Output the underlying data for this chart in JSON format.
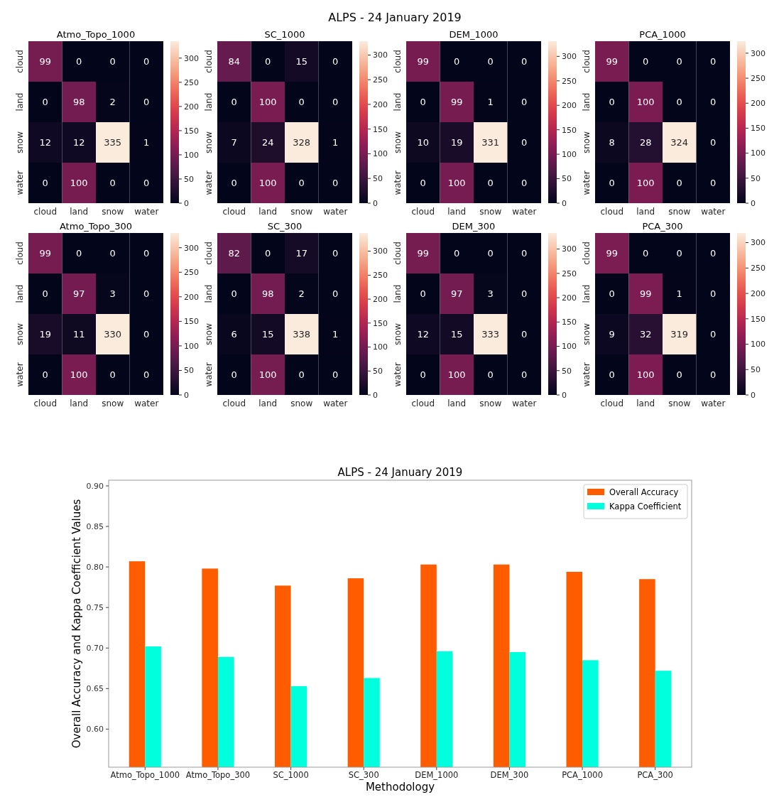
{
  "chart_data": [
    {
      "type": "heatmap",
      "title": "Atmo_Topo_1000",
      "annotations": [
        "ALPS - 24 January 2019"
      ],
      "categories": [
        "cloud",
        "land",
        "snow",
        "water"
      ],
      "y_categories": [
        "cloud",
        "land",
        "snow",
        "water"
      ],
      "cells": [
        [
          99,
          0,
          0,
          0
        ],
        [
          0,
          98,
          2,
          0
        ],
        [
          12,
          12,
          335,
          1
        ],
        [
          0,
          100,
          0,
          0
        ]
      ],
      "clim": [
        0,
        335
      ],
      "cticks": [
        0,
        50,
        100,
        150,
        200,
        250,
        300
      ],
      "data_labels": true
    },
    {
      "type": "heatmap",
      "title": "SC_1000",
      "categories": [
        "cloud",
        "land",
        "snow",
        "water"
      ],
      "y_categories": [
        "cloud",
        "land",
        "snow",
        "water"
      ],
      "cells": [
        [
          84,
          0,
          15,
          0
        ],
        [
          0,
          100,
          0,
          0
        ],
        [
          7,
          24,
          328,
          1
        ],
        [
          0,
          100,
          0,
          0
        ]
      ],
      "clim": [
        0,
        328
      ],
      "cticks": [
        0,
        50,
        100,
        150,
        200,
        250,
        300
      ],
      "data_labels": true
    },
    {
      "type": "heatmap",
      "title": "DEM_1000",
      "categories": [
        "cloud",
        "land",
        "snow",
        "water"
      ],
      "y_categories": [
        "cloud",
        "land",
        "snow",
        "water"
      ],
      "cells": [
        [
          99,
          0,
          0,
          0
        ],
        [
          0,
          99,
          1,
          0
        ],
        [
          10,
          19,
          331,
          0
        ],
        [
          0,
          100,
          0,
          0
        ]
      ],
      "clim": [
        0,
        331
      ],
      "cticks": [
        0,
        50,
        100,
        150,
        200,
        250,
        300
      ],
      "data_labels": true
    },
    {
      "type": "heatmap",
      "title": "PCA_1000",
      "categories": [
        "cloud",
        "land",
        "snow",
        "water"
      ],
      "y_categories": [
        "cloud",
        "land",
        "snow",
        "water"
      ],
      "cells": [
        [
          99,
          0,
          0,
          0
        ],
        [
          0,
          100,
          0,
          0
        ],
        [
          8,
          28,
          324,
          0
        ],
        [
          0,
          100,
          0,
          0
        ]
      ],
      "clim": [
        0,
        324
      ],
      "cticks": [
        0,
        50,
        100,
        150,
        200,
        250,
        300
      ],
      "data_labels": true
    },
    {
      "type": "heatmap",
      "title": "Atmo_Topo_300",
      "categories": [
        "cloud",
        "land",
        "snow",
        "water"
      ],
      "y_categories": [
        "cloud",
        "land",
        "snow",
        "water"
      ],
      "cells": [
        [
          99,
          0,
          0,
          0
        ],
        [
          0,
          97,
          3,
          0
        ],
        [
          19,
          11,
          330,
          0
        ],
        [
          0,
          100,
          0,
          0
        ]
      ],
      "clim": [
        0,
        330
      ],
      "cticks": [
        0,
        50,
        100,
        150,
        200,
        250,
        300
      ],
      "data_labels": true
    },
    {
      "type": "heatmap",
      "title": "SC_300",
      "categories": [
        "cloud",
        "land",
        "snow",
        "water"
      ],
      "y_categories": [
        "cloud",
        "land",
        "snow",
        "water"
      ],
      "cells": [
        [
          82,
          0,
          17,
          0
        ],
        [
          0,
          98,
          2,
          0
        ],
        [
          6,
          15,
          338,
          1
        ],
        [
          0,
          100,
          0,
          0
        ]
      ],
      "clim": [
        0,
        338
      ],
      "cticks": [
        0,
        50,
        100,
        150,
        200,
        250,
        300
      ],
      "data_labels": true
    },
    {
      "type": "heatmap",
      "title": "DEM_300",
      "categories": [
        "cloud",
        "land",
        "snow",
        "water"
      ],
      "y_categories": [
        "cloud",
        "land",
        "snow",
        "water"
      ],
      "cells": [
        [
          99,
          0,
          0,
          0
        ],
        [
          0,
          97,
          3,
          0
        ],
        [
          12,
          15,
          333,
          0
        ],
        [
          0,
          100,
          0,
          0
        ]
      ],
      "clim": [
        0,
        333
      ],
      "cticks": [
        0,
        50,
        100,
        150,
        200,
        250,
        300
      ],
      "data_labels": true
    },
    {
      "type": "heatmap",
      "title": "PCA_300",
      "categories": [
        "cloud",
        "land",
        "snow",
        "water"
      ],
      "y_categories": [
        "cloud",
        "land",
        "snow",
        "water"
      ],
      "cells": [
        [
          99,
          0,
          0,
          0
        ],
        [
          0,
          99,
          1,
          0
        ],
        [
          9,
          32,
          319,
          0
        ],
        [
          0,
          100,
          0,
          0
        ]
      ],
      "clim": [
        0,
        319
      ],
      "cticks": [
        0,
        50,
        100,
        150,
        200,
        250,
        300
      ],
      "data_labels": true
    },
    {
      "type": "bar",
      "title": "ALPS - 24 January 2019",
      "xlabel": "Methodology",
      "ylabel": "Overall Accuracy and Kappa Coefficient Values",
      "categories": [
        "Atmo_Topo_1000",
        "Atmo_Topo_300",
        "SC_1000",
        "SC_300",
        "DEM_1000",
        "DEM_300",
        "PCA_1000",
        "PCA_300"
      ],
      "series": [
        {
          "name": "Overall Accuracy",
          "color": "#ff5c00",
          "values": [
            0.807,
            0.798,
            0.777,
            0.786,
            0.803,
            0.803,
            0.794,
            0.785
          ]
        },
        {
          "name": "Kappa Coefficient",
          "color": "#00ffdd",
          "values": [
            0.702,
            0.689,
            0.653,
            0.663,
            0.696,
            0.695,
            0.685,
            0.672
          ]
        }
      ],
      "ylim": [
        0.553,
        0.907
      ],
      "yticks": [
        {
          "value": 0.6,
          "label": "0.60"
        },
        0.65,
        {
          "value": 0.7,
          "label": "0.70"
        },
        0.75,
        {
          "value": 0.8,
          "label": "0.80"
        },
        0.85,
        {
          "value": 0.9,
          "label": "0.90"
        }
      ],
      "legend": "top right",
      "grid": false
    }
  ]
}
